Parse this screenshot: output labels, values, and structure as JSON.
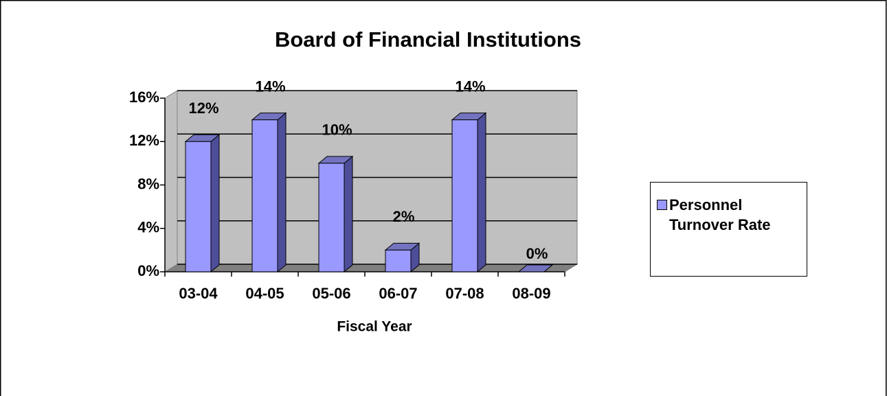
{
  "chart_data": {
    "type": "bar",
    "title": "Board of Financial Institutions",
    "x_label": "Fiscal Year",
    "categories": [
      "03-04",
      "04-05",
      "05-06",
      "06-07",
      "07-08",
      "08-09"
    ],
    "series": [
      {
        "name": "Personnel Turnover Rate",
        "color": "#9999ff",
        "values": [
          12,
          14,
          10,
          2,
          14,
          0
        ],
        "value_labels": [
          "12%",
          "14%",
          "10%",
          "2%",
          "14%",
          "0%"
        ]
      }
    ],
    "ylim": [
      0,
      16
    ],
    "yticks": [
      {
        "value": 0,
        "label": "0%"
      },
      {
        "value": 4,
        "label": "4%"
      },
      {
        "value": 8,
        "label": "8%"
      },
      {
        "value": 12,
        "label": "12%"
      },
      {
        "value": 16,
        "label": "16%"
      }
    ],
    "grid": true,
    "legend": "right"
  }
}
